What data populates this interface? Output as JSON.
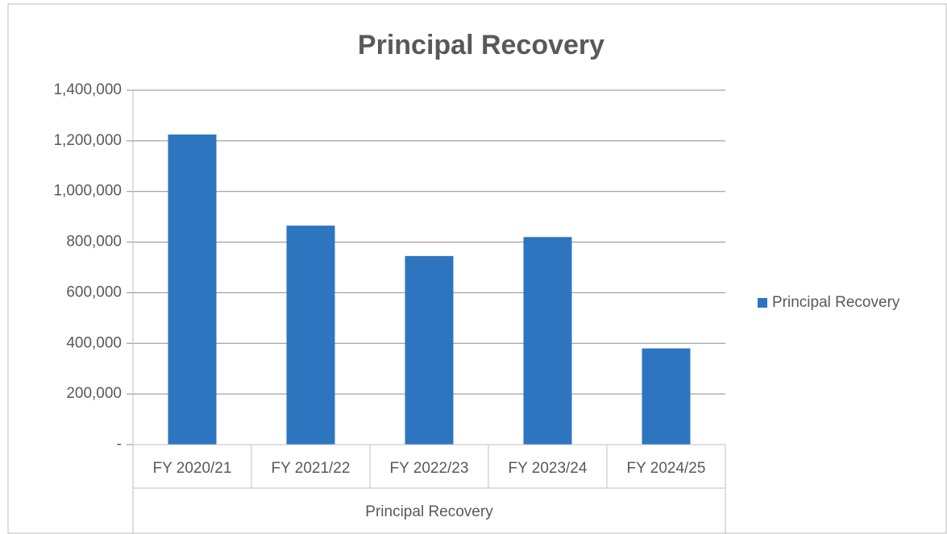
{
  "chart_data": {
    "type": "bar",
    "title": "Principal Recovery",
    "xlabel": "Principal Recovery",
    "categories": [
      "FY 2020/21",
      "FY 2021/22",
      "FY 2022/23",
      "FY 2023/24",
      "FY 2024/25"
    ],
    "series": [
      {
        "name": "Principal Recovery",
        "color": "#2e75c0",
        "values": [
          1225000,
          865000,
          745000,
          820000,
          380000
        ]
      }
    ],
    "ylim": [
      0,
      1400000
    ],
    "yticks": [
      {
        "value": 0,
        "label": "-"
      },
      {
        "value": 200000,
        "label": "200,000"
      },
      {
        "value": 400000,
        "label": "400,000"
      },
      {
        "value": 600000,
        "label": "600,000"
      },
      {
        "value": 800000,
        "label": "800,000"
      },
      {
        "value": 1000000,
        "label": "1,000,000"
      },
      {
        "value": 1200000,
        "label": "1,200,000"
      },
      {
        "value": 1400000,
        "label": "1,400,000"
      }
    ],
    "grid": true,
    "legend": "right"
  }
}
